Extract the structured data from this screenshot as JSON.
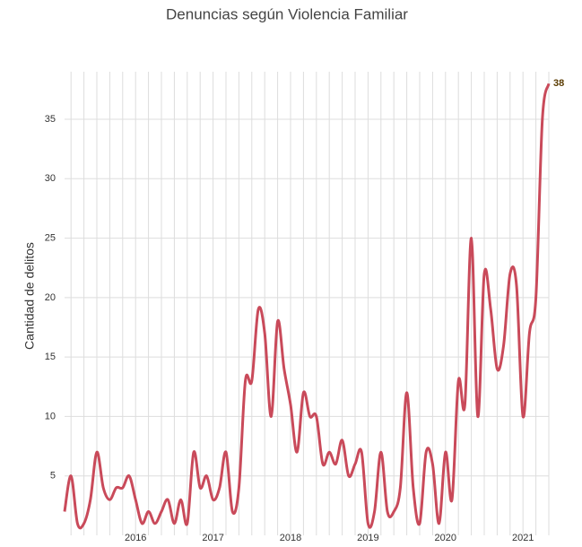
{
  "chart_data": {
    "type": "line",
    "title": "Denuncias según Violencia Familiar",
    "y_label": "Cantidad de delitos",
    "categories": [
      null,
      null,
      null,
      null,
      null,
      null,
      null,
      null,
      null,
      null,
      null,
      "2016",
      null,
      null,
      null,
      null,
      null,
      null,
      null,
      null,
      null,
      null,
      null,
      "2017",
      null,
      null,
      null,
      null,
      null,
      null,
      null,
      null,
      null,
      null,
      null,
      "2018",
      null,
      null,
      null,
      null,
      null,
      null,
      null,
      null,
      null,
      null,
      null,
      "2019",
      null,
      null,
      null,
      null,
      null,
      null,
      null,
      null,
      null,
      null,
      null,
      "2020",
      null,
      null,
      null,
      null,
      null,
      null,
      null,
      null,
      null,
      null,
      null,
      "2021",
      null,
      null,
      null,
      null
    ],
    "values": [
      2,
      5,
      1,
      1,
      3,
      7,
      4,
      3,
      4,
      4,
      5,
      3,
      1,
      2,
      1,
      2,
      3,
      1,
      3,
      1,
      7,
      4,
      5,
      3,
      4,
      7,
      2,
      4,
      13,
      13,
      19,
      17,
      10,
      18,
      14,
      11,
      7,
      12,
      10,
      10,
      6,
      7,
      6,
      8,
      5,
      6,
      7,
      1,
      2,
      7,
      2,
      2,
      4,
      12,
      4,
      1,
      7,
      6,
      1,
      7,
      3,
      13,
      11,
      25,
      10,
      22,
      19,
      14,
      16,
      22,
      21,
      10,
      17,
      20,
      35,
      38
    ],
    "color": "#c94a5a",
    "ylim": [
      0,
      39
    ],
    "yticks": [
      5,
      10,
      15,
      20,
      25,
      30,
      35
    ],
    "grid": true
  }
}
